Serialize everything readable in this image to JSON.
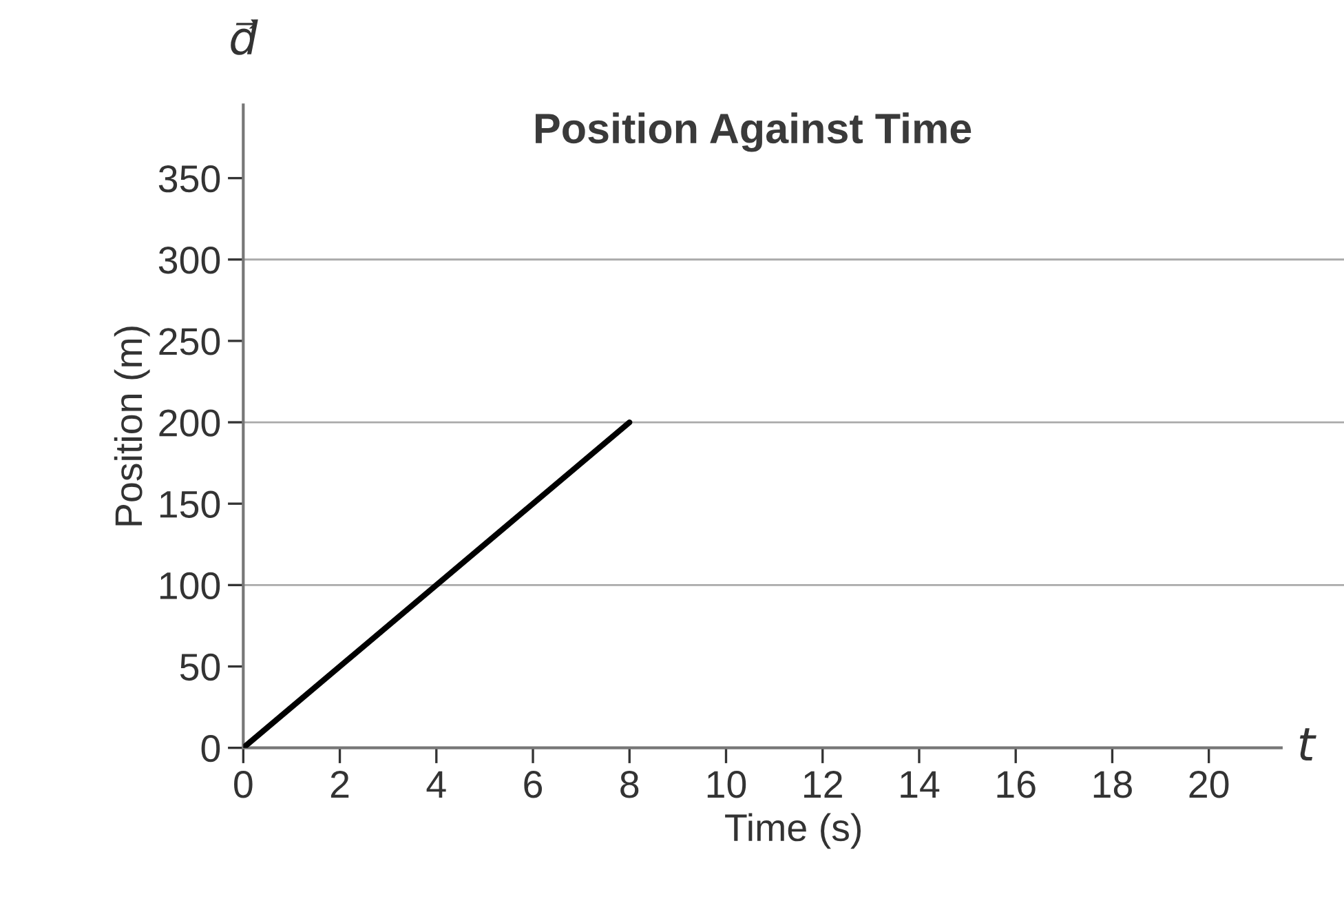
{
  "chart_data": {
    "type": "line",
    "title": "Position Against Time",
    "xlabel": "Time (s)",
    "ylabel": "Position (m)",
    "x": [
      0,
      8
    ],
    "series": [
      {
        "color": "#000000",
        "values": [
          0,
          200
        ]
      }
    ],
    "xlim": [
      0,
      22.8
    ],
    "ylim": [
      0,
      395
    ],
    "xticks": [
      0,
      2,
      4,
      6,
      8,
      10,
      12,
      14,
      16,
      18,
      20
    ],
    "yticks": [
      0,
      50,
      100,
      150,
      200,
      250,
      300,
      350
    ],
    "grid": false,
    "marker": "none",
    "line_style": "solid",
    "ref_lines": [
      {
        "axis": "y",
        "value": 100,
        "color": "#aaaaaa"
      },
      {
        "axis": "y",
        "value": 200,
        "color": "#aaaaaa"
      },
      {
        "axis": "y",
        "value": 300,
        "color": "#aaaaaa"
      }
    ],
    "annotations": [
      "d⃗",
      "t"
    ]
  }
}
